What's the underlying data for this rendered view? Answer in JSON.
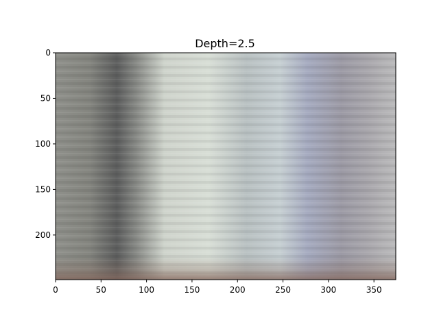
{
  "figure": {
    "background": "#ffffff"
  },
  "chart_data": {
    "type": "heatmap",
    "title": "Depth=2.5",
    "xlabel": "",
    "ylabel": "",
    "xlim": [
      0,
      374
    ],
    "ylim": [
      249,
      0
    ],
    "x_ticks": [
      "0",
      "50",
      "100",
      "150",
      "200",
      "250",
      "300",
      "350"
    ],
    "y_ticks": [
      "0",
      "50",
      "100",
      "150",
      "200"
    ],
    "grid": false,
    "legend": "none",
    "image_description_colors": {
      "left_band": "#8e8f8a",
      "dark_band_near_x_75": "#5f6060",
      "light_band_x_110_to_240": "#cfd6cf",
      "blue_band_x_260_to_320": "#a3a9bf",
      "right_band": "#9d9ba1",
      "bottom_edge": "#8a6e62"
    }
  }
}
